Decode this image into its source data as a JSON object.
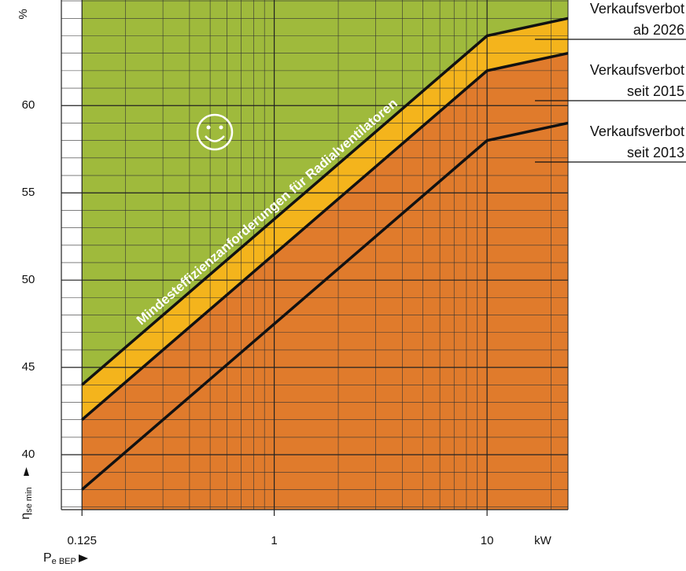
{
  "chart_data": {
    "type": "line",
    "unit_y": "%",
    "unit_x": "kW",
    "ylabel": {
      "symbol": "η",
      "sub": "se min"
    },
    "xlabel": {
      "symbol": "P",
      "sub": "e BEP"
    },
    "annotation": "Mindesteffizienzanforderungen für Radialventilatoren",
    "log_x": true,
    "grid": true,
    "background": "#9fba3c",
    "xlim": [
      0.1,
      24
    ],
    "ylim": [
      36.85,
      66.05
    ],
    "xticks": [
      0.125,
      1,
      10
    ],
    "yticks": [
      40,
      45,
      50,
      55,
      60
    ],
    "series": [
      {
        "name": "Verkaufsverbot ab 2026",
        "color": "#111111",
        "fill": "#f4b41c",
        "x": [
          0.125,
          10,
          24
        ],
        "values": [
          44,
          64,
          65
        ]
      },
      {
        "name": "Verkaufsverbot seit 2015",
        "color": "#111111",
        "fill": "#e07b2c",
        "x": [
          0.125,
          10,
          24
        ],
        "values": [
          42,
          62,
          63
        ]
      },
      {
        "name": "Verkaufsverbot seit 2013",
        "color": "#111111",
        "fill": "#e07b2c",
        "x": [
          0.125,
          10,
          24
        ],
        "values": [
          38,
          58,
          59
        ]
      }
    ]
  }
}
